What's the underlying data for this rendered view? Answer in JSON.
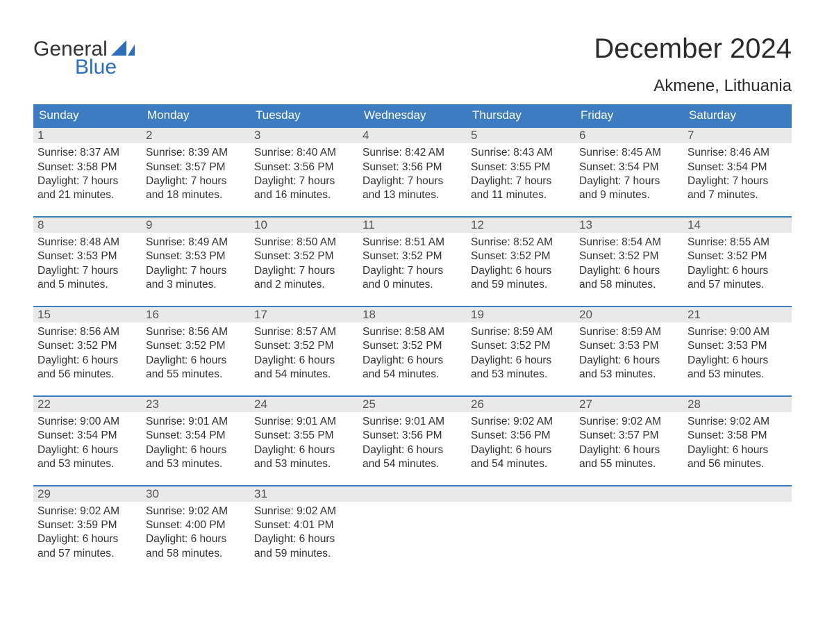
{
  "logo": {
    "text1": "General",
    "text2": "Blue",
    "accent_color": "#2c6fb7",
    "text_color": "#333333"
  },
  "title": "December 2024",
  "location": "Akmene, Lithuania",
  "colors": {
    "header_bg": "#3d7cc0",
    "header_text": "#ffffff",
    "daynum_bg": "#e9e9e9",
    "daynum_text": "#555555",
    "body_text": "#333333",
    "rule": "#3d7cc0",
    "background": "#ffffff"
  },
  "day_labels": [
    "Sunday",
    "Monday",
    "Tuesday",
    "Wednesday",
    "Thursday",
    "Friday",
    "Saturday"
  ],
  "weeks": [
    [
      {
        "num": "1",
        "sunrise": "Sunrise: 8:37 AM",
        "sunset": "Sunset: 3:58 PM",
        "d1": "Daylight: 7 hours",
        "d2": "and 21 minutes."
      },
      {
        "num": "2",
        "sunrise": "Sunrise: 8:39 AM",
        "sunset": "Sunset: 3:57 PM",
        "d1": "Daylight: 7 hours",
        "d2": "and 18 minutes."
      },
      {
        "num": "3",
        "sunrise": "Sunrise: 8:40 AM",
        "sunset": "Sunset: 3:56 PM",
        "d1": "Daylight: 7 hours",
        "d2": "and 16 minutes."
      },
      {
        "num": "4",
        "sunrise": "Sunrise: 8:42 AM",
        "sunset": "Sunset: 3:56 PM",
        "d1": "Daylight: 7 hours",
        "d2": "and 13 minutes."
      },
      {
        "num": "5",
        "sunrise": "Sunrise: 8:43 AM",
        "sunset": "Sunset: 3:55 PM",
        "d1": "Daylight: 7 hours",
        "d2": "and 11 minutes."
      },
      {
        "num": "6",
        "sunrise": "Sunrise: 8:45 AM",
        "sunset": "Sunset: 3:54 PM",
        "d1": "Daylight: 7 hours",
        "d2": "and 9 minutes."
      },
      {
        "num": "7",
        "sunrise": "Sunrise: 8:46 AM",
        "sunset": "Sunset: 3:54 PM",
        "d1": "Daylight: 7 hours",
        "d2": "and 7 minutes."
      }
    ],
    [
      {
        "num": "8",
        "sunrise": "Sunrise: 8:48 AM",
        "sunset": "Sunset: 3:53 PM",
        "d1": "Daylight: 7 hours",
        "d2": "and 5 minutes."
      },
      {
        "num": "9",
        "sunrise": "Sunrise: 8:49 AM",
        "sunset": "Sunset: 3:53 PM",
        "d1": "Daylight: 7 hours",
        "d2": "and 3 minutes."
      },
      {
        "num": "10",
        "sunrise": "Sunrise: 8:50 AM",
        "sunset": "Sunset: 3:52 PM",
        "d1": "Daylight: 7 hours",
        "d2": "and 2 minutes."
      },
      {
        "num": "11",
        "sunrise": "Sunrise: 8:51 AM",
        "sunset": "Sunset: 3:52 PM",
        "d1": "Daylight: 7 hours",
        "d2": "and 0 minutes."
      },
      {
        "num": "12",
        "sunrise": "Sunrise: 8:52 AM",
        "sunset": "Sunset: 3:52 PM",
        "d1": "Daylight: 6 hours",
        "d2": "and 59 minutes."
      },
      {
        "num": "13",
        "sunrise": "Sunrise: 8:54 AM",
        "sunset": "Sunset: 3:52 PM",
        "d1": "Daylight: 6 hours",
        "d2": "and 58 minutes."
      },
      {
        "num": "14",
        "sunrise": "Sunrise: 8:55 AM",
        "sunset": "Sunset: 3:52 PM",
        "d1": "Daylight: 6 hours",
        "d2": "and 57 minutes."
      }
    ],
    [
      {
        "num": "15",
        "sunrise": "Sunrise: 8:56 AM",
        "sunset": "Sunset: 3:52 PM",
        "d1": "Daylight: 6 hours",
        "d2": "and 56 minutes."
      },
      {
        "num": "16",
        "sunrise": "Sunrise: 8:56 AM",
        "sunset": "Sunset: 3:52 PM",
        "d1": "Daylight: 6 hours",
        "d2": "and 55 minutes."
      },
      {
        "num": "17",
        "sunrise": "Sunrise: 8:57 AM",
        "sunset": "Sunset: 3:52 PM",
        "d1": "Daylight: 6 hours",
        "d2": "and 54 minutes."
      },
      {
        "num": "18",
        "sunrise": "Sunrise: 8:58 AM",
        "sunset": "Sunset: 3:52 PM",
        "d1": "Daylight: 6 hours",
        "d2": "and 54 minutes."
      },
      {
        "num": "19",
        "sunrise": "Sunrise: 8:59 AM",
        "sunset": "Sunset: 3:52 PM",
        "d1": "Daylight: 6 hours",
        "d2": "and 53 minutes."
      },
      {
        "num": "20",
        "sunrise": "Sunrise: 8:59 AM",
        "sunset": "Sunset: 3:53 PM",
        "d1": "Daylight: 6 hours",
        "d2": "and 53 minutes."
      },
      {
        "num": "21",
        "sunrise": "Sunrise: 9:00 AM",
        "sunset": "Sunset: 3:53 PM",
        "d1": "Daylight: 6 hours",
        "d2": "and 53 minutes."
      }
    ],
    [
      {
        "num": "22",
        "sunrise": "Sunrise: 9:00 AM",
        "sunset": "Sunset: 3:54 PM",
        "d1": "Daylight: 6 hours",
        "d2": "and 53 minutes."
      },
      {
        "num": "23",
        "sunrise": "Sunrise: 9:01 AM",
        "sunset": "Sunset: 3:54 PM",
        "d1": "Daylight: 6 hours",
        "d2": "and 53 minutes."
      },
      {
        "num": "24",
        "sunrise": "Sunrise: 9:01 AM",
        "sunset": "Sunset: 3:55 PM",
        "d1": "Daylight: 6 hours",
        "d2": "and 53 minutes."
      },
      {
        "num": "25",
        "sunrise": "Sunrise: 9:01 AM",
        "sunset": "Sunset: 3:56 PM",
        "d1": "Daylight: 6 hours",
        "d2": "and 54 minutes."
      },
      {
        "num": "26",
        "sunrise": "Sunrise: 9:02 AM",
        "sunset": "Sunset: 3:56 PM",
        "d1": "Daylight: 6 hours",
        "d2": "and 54 minutes."
      },
      {
        "num": "27",
        "sunrise": "Sunrise: 9:02 AM",
        "sunset": "Sunset: 3:57 PM",
        "d1": "Daylight: 6 hours",
        "d2": "and 55 minutes."
      },
      {
        "num": "28",
        "sunrise": "Sunrise: 9:02 AM",
        "sunset": "Sunset: 3:58 PM",
        "d1": "Daylight: 6 hours",
        "d2": "and 56 minutes."
      }
    ],
    [
      {
        "num": "29",
        "sunrise": "Sunrise: 9:02 AM",
        "sunset": "Sunset: 3:59 PM",
        "d1": "Daylight: 6 hours",
        "d2": "and 57 minutes."
      },
      {
        "num": "30",
        "sunrise": "Sunrise: 9:02 AM",
        "sunset": "Sunset: 4:00 PM",
        "d1": "Daylight: 6 hours",
        "d2": "and 58 minutes."
      },
      {
        "num": "31",
        "sunrise": "Sunrise: 9:02 AM",
        "sunset": "Sunset: 4:01 PM",
        "d1": "Daylight: 6 hours",
        "d2": "and 59 minutes."
      },
      null,
      null,
      null,
      null
    ]
  ]
}
